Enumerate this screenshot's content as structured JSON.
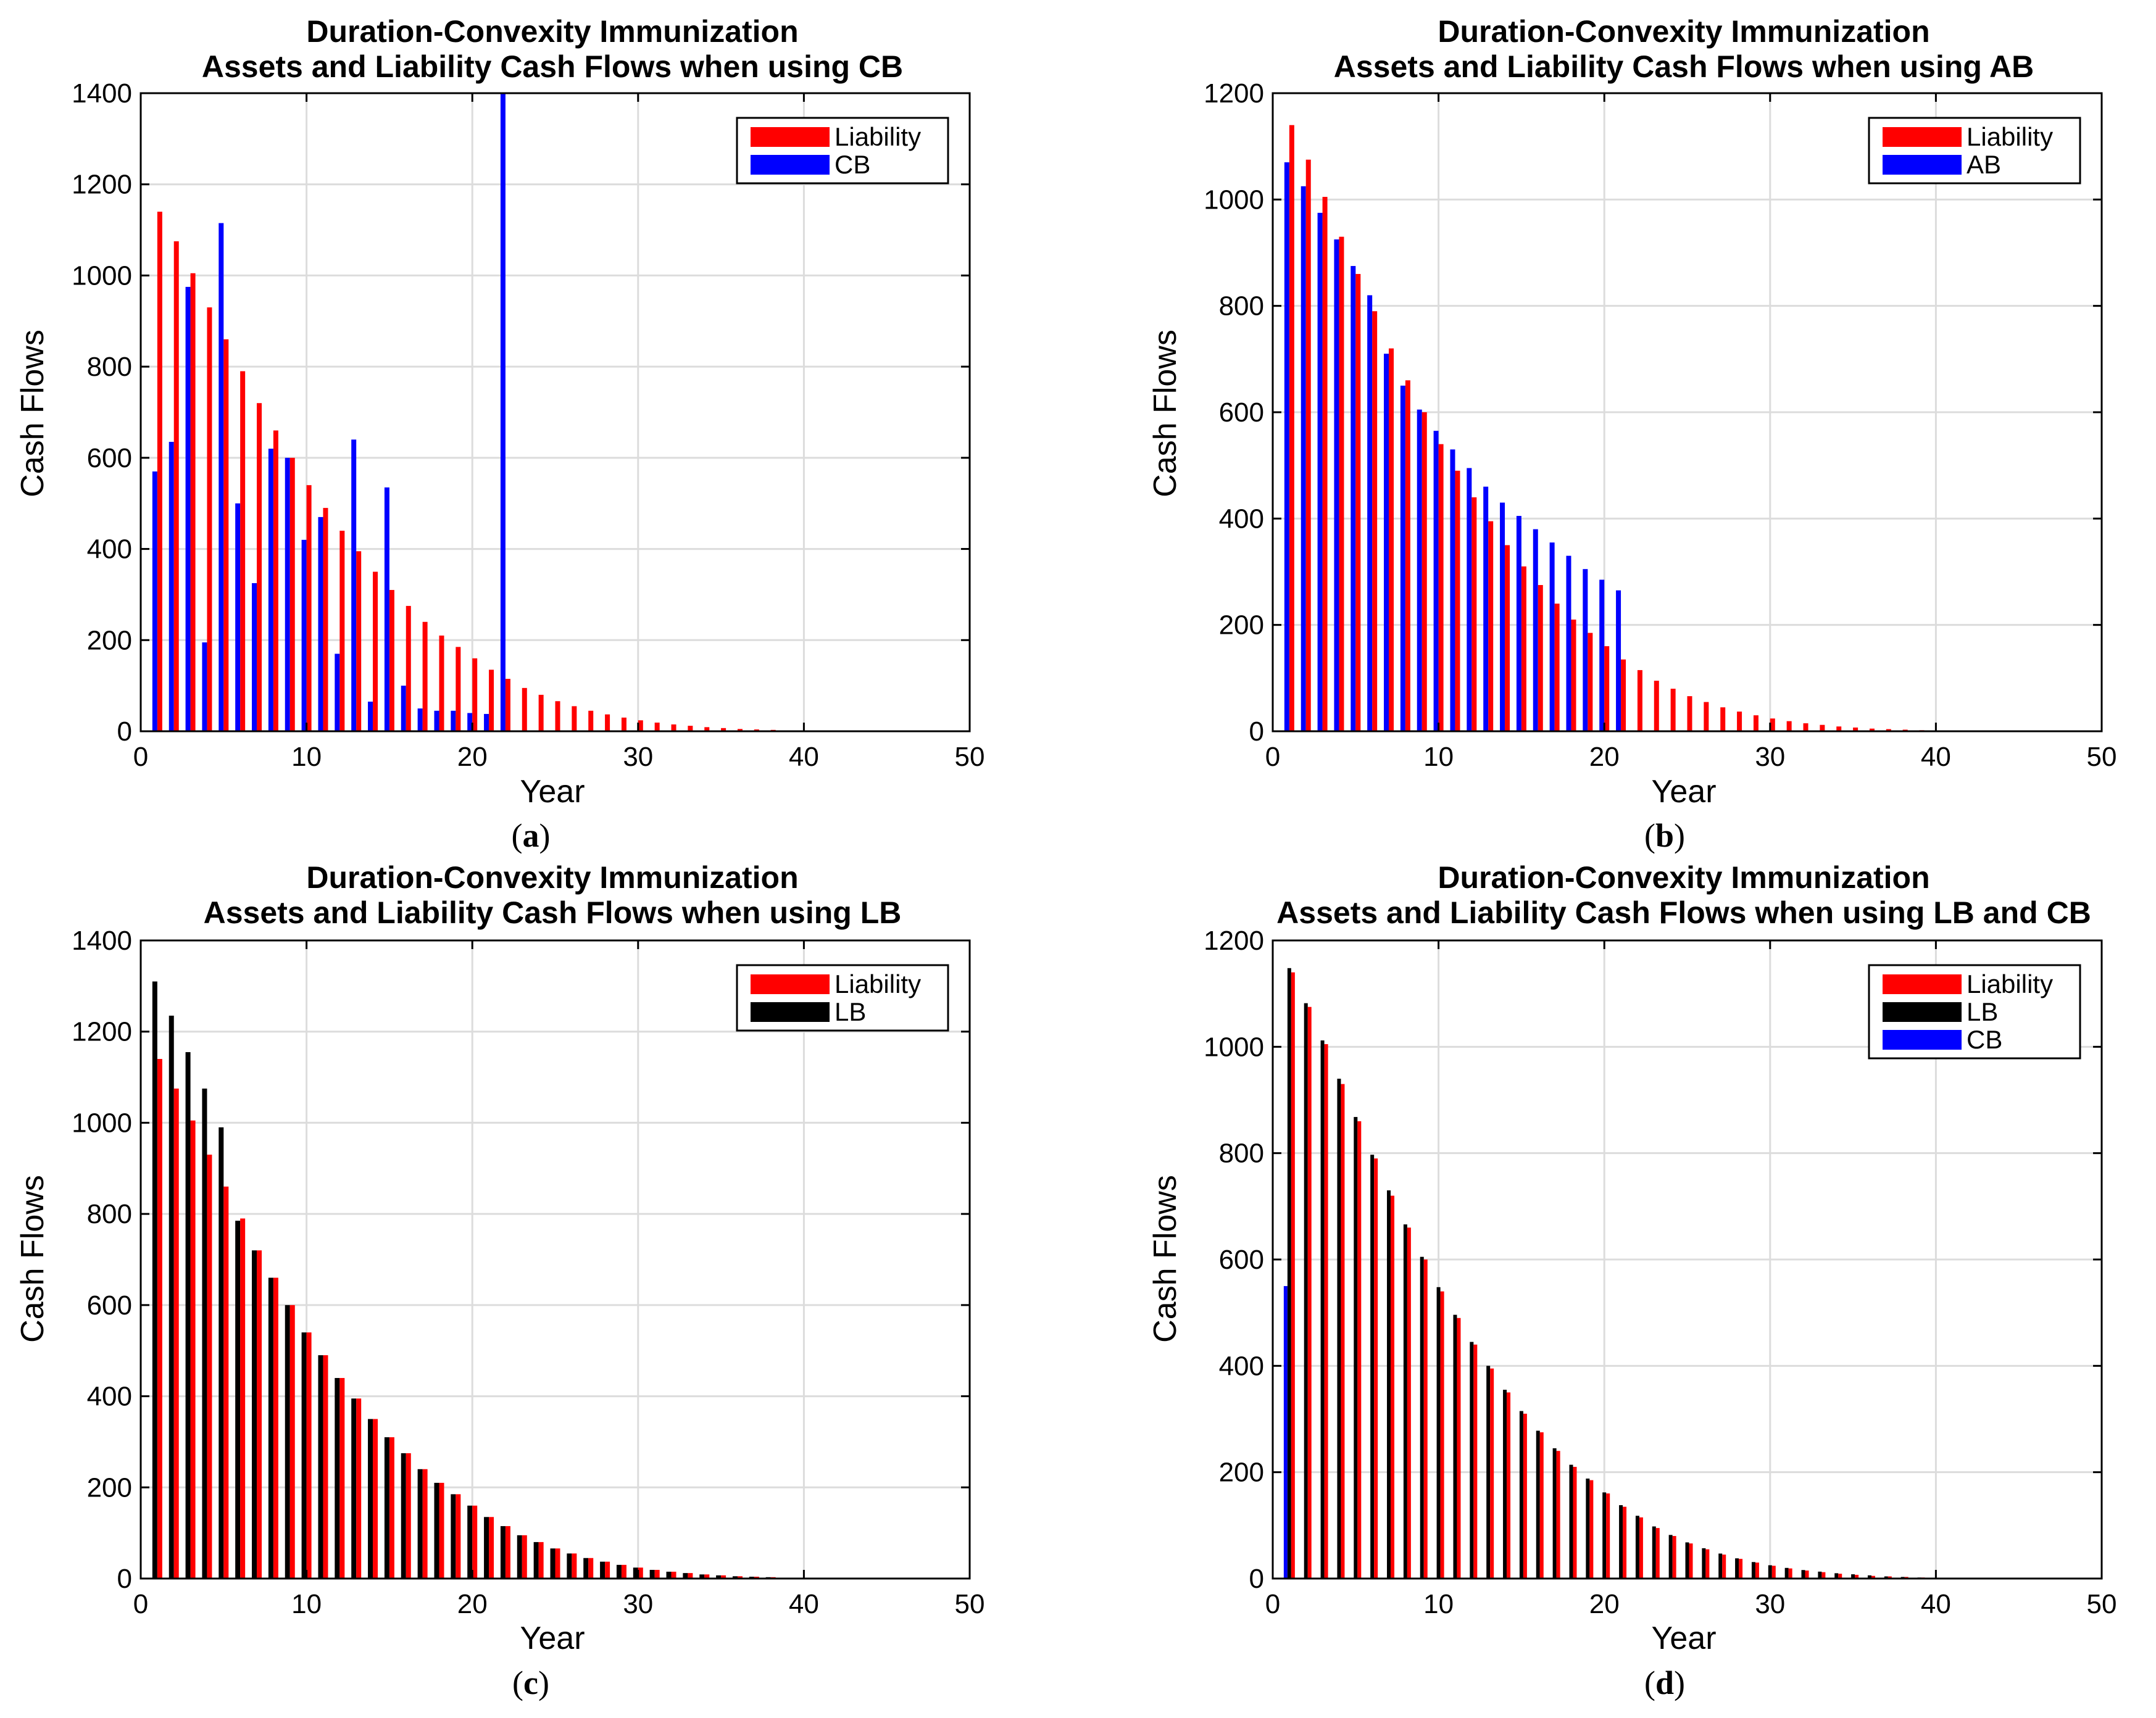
{
  "colors": {
    "Liability": "#ff0000",
    "CB": "#0000ff",
    "AB": "#0000ff",
    "LB": "#000000"
  },
  "chart_data": [
    {
      "type": "bar",
      "caption_letter": "a",
      "title_line1": "Duration-Convexity Immunization",
      "title_line2": "Assets and Liability Cash Flows when using CB",
      "xlabel": "Year",
      "ylabel": "Cash Flows",
      "xlim": [
        0,
        50
      ],
      "ylim": [
        0,
        1400
      ],
      "xticks": [
        0,
        10,
        20,
        30,
        40,
        50
      ],
      "yticks": [
        0,
        200,
        400,
        600,
        800,
        1000,
        1200,
        1400
      ],
      "x": [
        1,
        2,
        3,
        4,
        5,
        6,
        7,
        8,
        9,
        10,
        11,
        12,
        13,
        14,
        15,
        16,
        17,
        18,
        19,
        20,
        21,
        22,
        23,
        24,
        25,
        26,
        27,
        28,
        29,
        30,
        31,
        32,
        33,
        34,
        35,
        36,
        37,
        38,
        39,
        40
      ],
      "series": [
        {
          "name": "CB",
          "values": [
            570,
            635,
            975,
            195,
            1115,
            500,
            325,
            620,
            600,
            420,
            470,
            170,
            640,
            65,
            535,
            100,
            50,
            45,
            45,
            40,
            38,
            1400,
            0,
            0,
            0,
            0,
            0,
            0,
            0,
            0,
            0,
            0,
            0,
            0,
            0,
            0,
            0,
            0,
            0,
            0
          ]
        },
        {
          "name": "Liability",
          "values": [
            1140,
            1075,
            1005,
            930,
            860,
            790,
            720,
            660,
            600,
            540,
            490,
            440,
            395,
            350,
            310,
            275,
            240,
            210,
            185,
            160,
            135,
            115,
            95,
            80,
            66,
            55,
            45,
            37,
            30,
            24,
            19,
            15,
            12,
            9,
            7,
            5,
            4,
            3,
            2,
            1
          ]
        }
      ],
      "legend": [
        "Liability",
        "CB"
      ],
      "legend_position": "top-right"
    },
    {
      "type": "bar",
      "caption_letter": "b",
      "title_line1": "Duration-Convexity Immunization",
      "title_line2": "Assets and Liability Cash Flows when using AB",
      "xlabel": "Year",
      "ylabel": "Cash Flows",
      "xlim": [
        0,
        50
      ],
      "ylim": [
        0,
        1200
      ],
      "xticks": [
        0,
        10,
        20,
        30,
        40,
        50
      ],
      "yticks": [
        0,
        200,
        400,
        600,
        800,
        1000,
        1200
      ],
      "x": [
        1,
        2,
        3,
        4,
        5,
        6,
        7,
        8,
        9,
        10,
        11,
        12,
        13,
        14,
        15,
        16,
        17,
        18,
        19,
        20,
        21,
        22,
        23,
        24,
        25,
        26,
        27,
        28,
        29,
        30,
        31,
        32,
        33,
        34,
        35,
        36,
        37,
        38,
        39,
        40
      ],
      "series": [
        {
          "name": "AB",
          "values": [
            1070,
            1025,
            975,
            925,
            875,
            820,
            710,
            650,
            605,
            565,
            530,
            495,
            460,
            430,
            405,
            380,
            355,
            330,
            305,
            285,
            265,
            0,
            0,
            0,
            0,
            0,
            0,
            0,
            0,
            0,
            0,
            0,
            0,
            0,
            0,
            0,
            0,
            0,
            0,
            0
          ]
        },
        {
          "name": "Liability",
          "values": [
            1140,
            1075,
            1005,
            930,
            860,
            790,
            720,
            660,
            600,
            540,
            490,
            440,
            395,
            350,
            310,
            275,
            240,
            210,
            185,
            160,
            135,
            115,
            95,
            80,
            66,
            55,
            45,
            37,
            30,
            24,
            19,
            15,
            12,
            9,
            7,
            5,
            4,
            3,
            2,
            1
          ]
        }
      ],
      "legend": [
        "Liability",
        "AB"
      ],
      "legend_position": "top-right"
    },
    {
      "type": "bar",
      "caption_letter": "c",
      "title_line1": "Duration-Convexity Immunization",
      "title_line2": "Assets and Liability Cash Flows when using LB",
      "xlabel": "Year",
      "ylabel": "Cash Flows",
      "xlim": [
        0,
        50
      ],
      "ylim": [
        0,
        1400
      ],
      "xticks": [
        0,
        10,
        20,
        30,
        40,
        50
      ],
      "yticks": [
        0,
        200,
        400,
        600,
        800,
        1000,
        1200,
        1400
      ],
      "x": [
        1,
        2,
        3,
        4,
        5,
        6,
        7,
        8,
        9,
        10,
        11,
        12,
        13,
        14,
        15,
        16,
        17,
        18,
        19,
        20,
        21,
        22,
        23,
        24,
        25,
        26,
        27,
        28,
        29,
        30,
        31,
        32,
        33,
        34,
        35,
        36,
        37,
        38,
        39,
        40
      ],
      "series": [
        {
          "name": "LB",
          "values": [
            1310,
            1235,
            1155,
            1075,
            990,
            785,
            720,
            660,
            600,
            540,
            490,
            440,
            395,
            350,
            310,
            275,
            240,
            210,
            185,
            160,
            135,
            115,
            95,
            80,
            66,
            55,
            45,
            37,
            30,
            24,
            19,
            15,
            12,
            9,
            7,
            5,
            4,
            3,
            2,
            1
          ]
        },
        {
          "name": "Liability",
          "values": [
            1140,
            1075,
            1005,
            930,
            860,
            790,
            720,
            660,
            600,
            540,
            490,
            440,
            395,
            350,
            310,
            275,
            240,
            210,
            185,
            160,
            135,
            115,
            95,
            80,
            66,
            55,
            45,
            37,
            30,
            24,
            19,
            15,
            12,
            9,
            7,
            5,
            4,
            3,
            2,
            1
          ]
        }
      ],
      "legend": [
        "Liability",
        "LB"
      ],
      "legend_position": "top-right"
    },
    {
      "type": "bar",
      "caption_letter": "d",
      "title_line1": "Duration-Convexity Immunization",
      "title_line2": "Assets and Liability Cash Flows when using LB and CB",
      "xlabel": "Year",
      "ylabel": "Cash Flows",
      "xlim": [
        0,
        50
      ],
      "ylim": [
        0,
        1200
      ],
      "xticks": [
        0,
        10,
        20,
        30,
        40,
        50
      ],
      "yticks": [
        0,
        200,
        400,
        600,
        800,
        1000,
        1200
      ],
      "x": [
        1,
        2,
        3,
        4,
        5,
        6,
        7,
        8,
        9,
        10,
        11,
        12,
        13,
        14,
        15,
        16,
        17,
        18,
        19,
        20,
        21,
        22,
        23,
        24,
        25,
        26,
        27,
        28,
        29,
        30,
        31,
        32,
        33,
        34,
        35,
        36,
        37,
        38,
        39,
        40
      ],
      "series": [
        {
          "name": "CB",
          "values": [
            550,
            0,
            0,
            0,
            0,
            0,
            0,
            0,
            0,
            0,
            0,
            0,
            0,
            0,
            0,
            0,
            0,
            0,
            0,
            0,
            0,
            0,
            0,
            0,
            0,
            0,
            0,
            0,
            0,
            0,
            0,
            0,
            0,
            0,
            0,
            0,
            0,
            0,
            0,
            0
          ]
        },
        {
          "name": "LB",
          "values": [
            1148,
            1082,
            1012,
            940,
            868,
            797,
            730,
            666,
            605,
            548,
            496,
            445,
            400,
            355,
            315,
            278,
            245,
            214,
            188,
            162,
            138,
            118,
            98,
            82,
            68,
            57,
            47,
            38,
            31,
            25,
            20,
            16,
            13,
            10,
            8,
            6,
            4,
            3,
            2,
            1
          ]
        },
        {
          "name": "Liability",
          "values": [
            1140,
            1075,
            1005,
            930,
            860,
            790,
            720,
            660,
            600,
            540,
            490,
            440,
            395,
            350,
            310,
            275,
            240,
            210,
            185,
            160,
            135,
            115,
            95,
            80,
            66,
            55,
            45,
            37,
            30,
            24,
            19,
            15,
            12,
            9,
            7,
            5,
            4,
            3,
            2,
            1
          ]
        }
      ],
      "legend": [
        "Liability",
        "LB",
        "CB"
      ],
      "legend_position": "top-right"
    }
  ]
}
